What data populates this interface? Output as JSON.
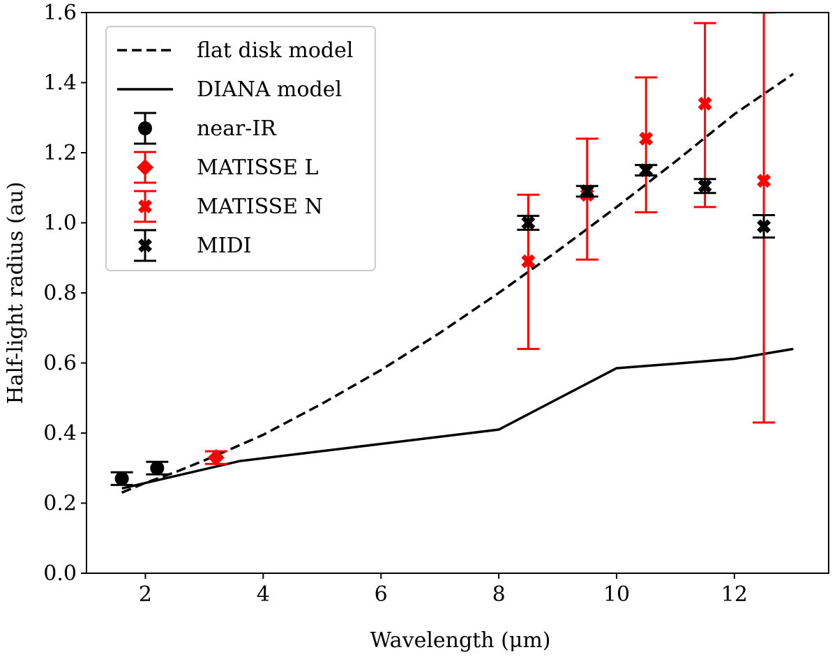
{
  "chart_data": {
    "type": "line",
    "title": "",
    "xlabel": "Wavelength (μm)",
    "ylabel": "Half-light radius (au)",
    "xlim": [
      1.0,
      13.6
    ],
    "ylim": [
      0.0,
      1.6
    ],
    "xticks": [
      2,
      4,
      6,
      8,
      10,
      12
    ],
    "yticks": [
      0.0,
      0.2,
      0.4,
      0.6,
      0.8,
      1.0,
      1.2,
      1.4,
      1.6
    ],
    "xtick_labels": [
      "2",
      "4",
      "6",
      "8",
      "10",
      "12"
    ],
    "ytick_labels": [
      "0.0",
      "0.2",
      "0.4",
      "0.6",
      "0.8",
      "1.0",
      "1.2",
      "1.4",
      "1.6"
    ],
    "legend_position": "top-left",
    "colors": {
      "black": "#000000",
      "red": "#ff0000"
    },
    "lines": [
      {
        "name": "flat disk model",
        "style": "dashed",
        "color": "#000000",
        "x": [
          1.6,
          2.0,
          2.5,
          3.0,
          3.5,
          4.0,
          5.0,
          6.0,
          7.0,
          8.0,
          9.0,
          10.0,
          11.0,
          12.0,
          13.0
        ],
        "y": [
          0.23,
          0.258,
          0.288,
          0.322,
          0.358,
          0.395,
          0.484,
          0.58,
          0.686,
          0.8,
          0.92,
          1.045,
          1.175,
          1.31,
          1.425
        ]
      },
      {
        "name": "DIANA model",
        "style": "solid",
        "color": "#000000",
        "x": [
          1.6,
          3.6,
          8.0,
          10.0,
          11.0,
          12.0,
          13.0
        ],
        "y": [
          0.242,
          0.32,
          0.41,
          0.585,
          0.598,
          0.612,
          0.64
        ]
      }
    ],
    "series": [
      {
        "name": "near-IR",
        "marker": "circle",
        "color": "#000000",
        "points": [
          {
            "x": 1.6,
            "y": 0.27,
            "err": 0.018
          },
          {
            "x": 2.2,
            "y": 0.3,
            "err": 0.018
          }
        ]
      },
      {
        "name": "MATISSE L",
        "marker": "diamond",
        "color": "#ff0000",
        "points": [
          {
            "x": 3.2,
            "y": 0.33,
            "err": 0.018
          }
        ]
      },
      {
        "name": "MATISSE N",
        "marker": "x-filled",
        "color": "#ff0000",
        "points": [
          {
            "x": 8.5,
            "y": 0.89,
            "err_low": 0.25,
            "err_high": 0.19
          },
          {
            "x": 9.5,
            "y": 1.08,
            "err_low": 0.185,
            "err_high": 0.16
          },
          {
            "x": 10.5,
            "y": 1.24,
            "err_low": 0.21,
            "err_high": 0.175
          },
          {
            "x": 11.5,
            "y": 1.34,
            "err_low": 0.295,
            "err_high": 0.23
          },
          {
            "x": 12.5,
            "y": 1.12,
            "err_low": 0.69,
            "err_high": 0.48
          }
        ]
      },
      {
        "name": "MIDI",
        "marker": "x-filled",
        "color": "#000000",
        "points": [
          {
            "x": 8.5,
            "y": 1.0,
            "err": 0.02
          },
          {
            "x": 9.5,
            "y": 1.09,
            "err": 0.015
          },
          {
            "x": 10.5,
            "y": 1.15,
            "err": 0.015
          },
          {
            "x": 11.5,
            "y": 1.105,
            "err": 0.02
          },
          {
            "x": 12.5,
            "y": 0.99,
            "err": 0.032
          }
        ]
      }
    ]
  }
}
